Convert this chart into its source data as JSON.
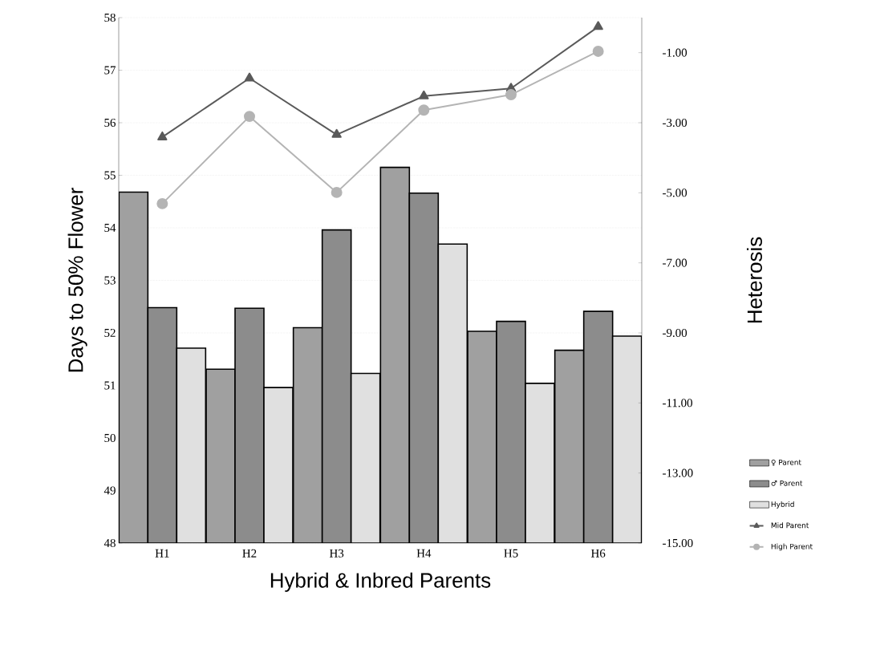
{
  "chart_data": {
    "type": "bar",
    "xlabel": "Hybrid & Inbred Parents",
    "ylabel": "Days to 50% Flower",
    "y2label": "Heterosis",
    "categories": [
      "H1",
      "H2",
      "H3",
      "H4",
      "H5",
      "H6"
    ],
    "series": [
      {
        "name": "♀ Parent",
        "color": "#a0a0a0",
        "values": [
          54.68,
          51.31,
          52.1,
          55.15,
          52.03,
          51.67
        ]
      },
      {
        "name": "♂ Parent",
        "color": "#8c8c8c",
        "values": [
          52.48,
          52.47,
          53.96,
          54.66,
          52.22,
          52.41
        ]
      },
      {
        "name": "Hybrid",
        "color": "#e0e0e0",
        "values": [
          51.71,
          50.96,
          51.23,
          53.69,
          51.04,
          51.94
        ]
      },
      {
        "name": "Mid Parent",
        "type": "line",
        "axis": "y2",
        "marker": "triangle",
        "color": "#5a5a5a",
        "values": [
          -3.41,
          -1.73,
          -3.34,
          -2.24,
          -2.02,
          -0.26
        ]
      },
      {
        "name": "High Parent",
        "type": "line",
        "axis": "y2",
        "marker": "circle",
        "color": "#b4b4b4",
        "values": [
          -5.31,
          -2.82,
          -4.99,
          -2.64,
          -2.2,
          -0.96
        ]
      }
    ],
    "ylim": [
      48,
      58
    ],
    "yticks": [
      48,
      49,
      50,
      51,
      52,
      53,
      54,
      55,
      56,
      57,
      58
    ],
    "y2lim": [
      -15,
      0
    ],
    "y2ticks": [
      {
        "value": -15,
        "label": "-15.00"
      },
      {
        "value": -13,
        "label": "-13.00"
      },
      {
        "value": -11,
        "label": "-11.00"
      },
      {
        "value": -9,
        "label": "-9.00"
      },
      {
        "value": -7,
        "label": "-7.00"
      },
      {
        "value": -5,
        "label": "-5.00"
      },
      {
        "value": -3,
        "label": "-3.00"
      },
      {
        "value": -1,
        "label": "-1.00"
      }
    ],
    "grid": "y",
    "legend": "bottom right"
  }
}
